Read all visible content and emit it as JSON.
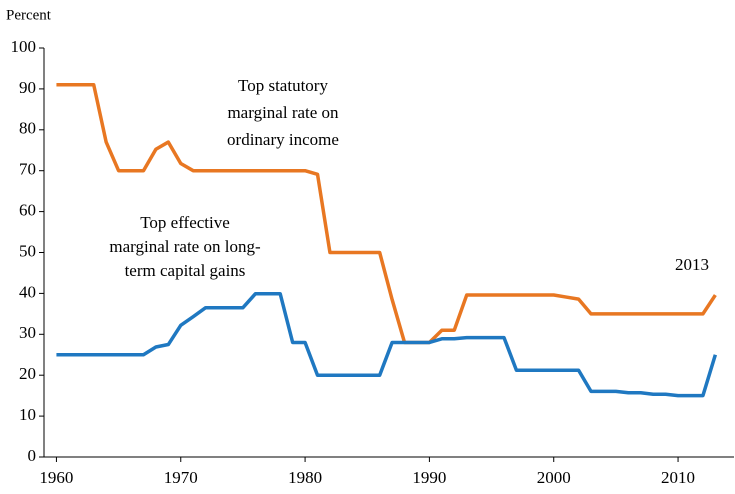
{
  "chart_data": {
    "type": "line",
    "y_label": "Percent",
    "x": [
      1960,
      1961,
      1962,
      1963,
      1964,
      1965,
      1966,
      1967,
      1968,
      1969,
      1970,
      1971,
      1972,
      1973,
      1974,
      1975,
      1976,
      1977,
      1978,
      1979,
      1980,
      1981,
      1982,
      1983,
      1984,
      1985,
      1986,
      1987,
      1988,
      1989,
      1990,
      1991,
      1992,
      1993,
      1994,
      1995,
      1996,
      1997,
      1998,
      1999,
      2000,
      2001,
      2002,
      2003,
      2004,
      2005,
      2006,
      2007,
      2008,
      2009,
      2010,
      2011,
      2012,
      2013
    ],
    "series": [
      {
        "name": "Top statutory marginal rate on ordinary income",
        "color": "#e87722",
        "values": [
          91,
          91,
          91,
          91,
          77,
          70,
          70,
          70,
          75.25,
          77,
          71.75,
          70,
          70,
          70,
          70,
          70,
          70,
          70,
          70,
          70,
          70,
          69.13,
          50,
          50,
          50,
          50,
          50,
          38.5,
          28,
          28,
          28,
          31,
          31,
          39.6,
          39.6,
          39.6,
          39.6,
          39.6,
          39.6,
          39.6,
          39.6,
          39.1,
          38.6,
          35,
          35,
          35,
          35,
          35,
          35,
          35,
          35,
          35,
          35,
          39.6
        ]
      },
      {
        "name": "Top effective marginal rate on long-term capital gains",
        "color": "#1f78c1",
        "values": [
          25,
          25,
          25,
          25,
          25,
          25,
          25,
          25,
          26.9,
          27.5,
          32.2,
          34.3,
          36.5,
          36.5,
          36.5,
          36.5,
          39.9,
          39.9,
          39.9,
          28,
          28,
          20,
          20,
          20,
          20,
          20,
          20,
          28,
          28,
          28,
          28,
          28.9,
          28.9,
          29.2,
          29.2,
          29.2,
          29.2,
          21.2,
          21.2,
          21.2,
          21.2,
          21.2,
          21.2,
          16.05,
          16.05,
          16.05,
          15.7,
          15.7,
          15.35,
          15.35,
          15,
          15,
          15,
          25
        ]
      }
    ],
    "annotations": [
      {
        "lines": [
          "Top statutory",
          "marginal rate on",
          "ordinary income"
        ]
      },
      {
        "lines": [
          "Top effective",
          "marginal rate on long-",
          "term capital gains"
        ]
      },
      {
        "lines": [
          "2013"
        ]
      }
    ],
    "xlim": [
      1959,
      2014.5
    ],
    "xticks": [
      1960,
      1970,
      1980,
      1990,
      2000,
      2010
    ],
    "ylim": [
      0,
      100
    ],
    "yticks": [
      0,
      10,
      20,
      30,
      40,
      50,
      60,
      70,
      80,
      90,
      100
    ],
    "grid": false
  }
}
